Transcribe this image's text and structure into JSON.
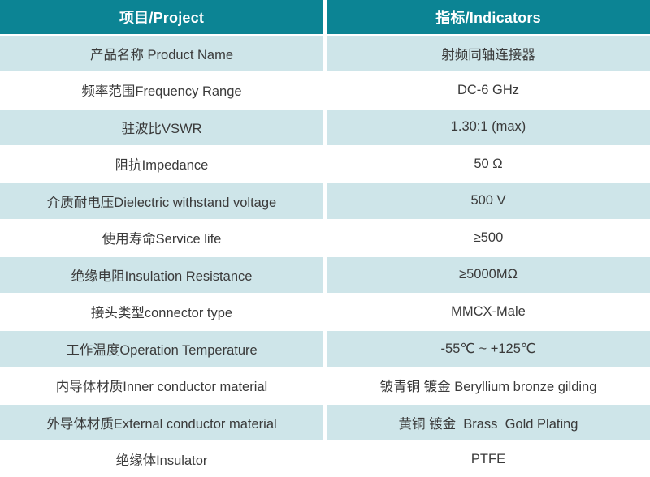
{
  "table": {
    "header": {
      "project_col": "项目/Project",
      "indicators_col": "指标/Indicators"
    },
    "rows": [
      {
        "project": "产品名称 Product Name",
        "indicator": "射频同轴连接器"
      },
      {
        "project": "频率范围Frequency Range",
        "indicator": "DC-6 GHz"
      },
      {
        "project": "驻波比VSWR",
        "indicator": "1.30:1 (max)"
      },
      {
        "project": "阻抗Impedance",
        "indicator": "50 Ω"
      },
      {
        "project": "介质耐电压Dielectric withstand voltage",
        "indicator": "500 V"
      },
      {
        "project": "使用寿命Service life",
        "indicator": "≥500"
      },
      {
        "project": "绝缘电阻Insulation Resistance",
        "indicator": "≥5000MΩ"
      },
      {
        "project": "接头类型connector type",
        "indicator": "MMCX-Male"
      },
      {
        "project": "工作温度Operation Temperature",
        "indicator": "-55℃ ~ +125℃"
      },
      {
        "project": "内导体材质Inner conductor material",
        "indicator": "铍青铜 镀金 Beryllium bronze gilding"
      },
      {
        "project": "外导体材质External conductor material",
        "indicator": "黄铜 镀金  Brass  Gold Plating"
      },
      {
        "project": "绝缘体Insulator",
        "indicator": "PTFE"
      }
    ],
    "colors": {
      "header_bg": "#0c8494",
      "header_text": "#ffffff",
      "row_alt_bg": "#cee5e9",
      "row_bg": "#ffffff",
      "body_text": "#3a3a3a",
      "divider": "#ffffff"
    }
  }
}
